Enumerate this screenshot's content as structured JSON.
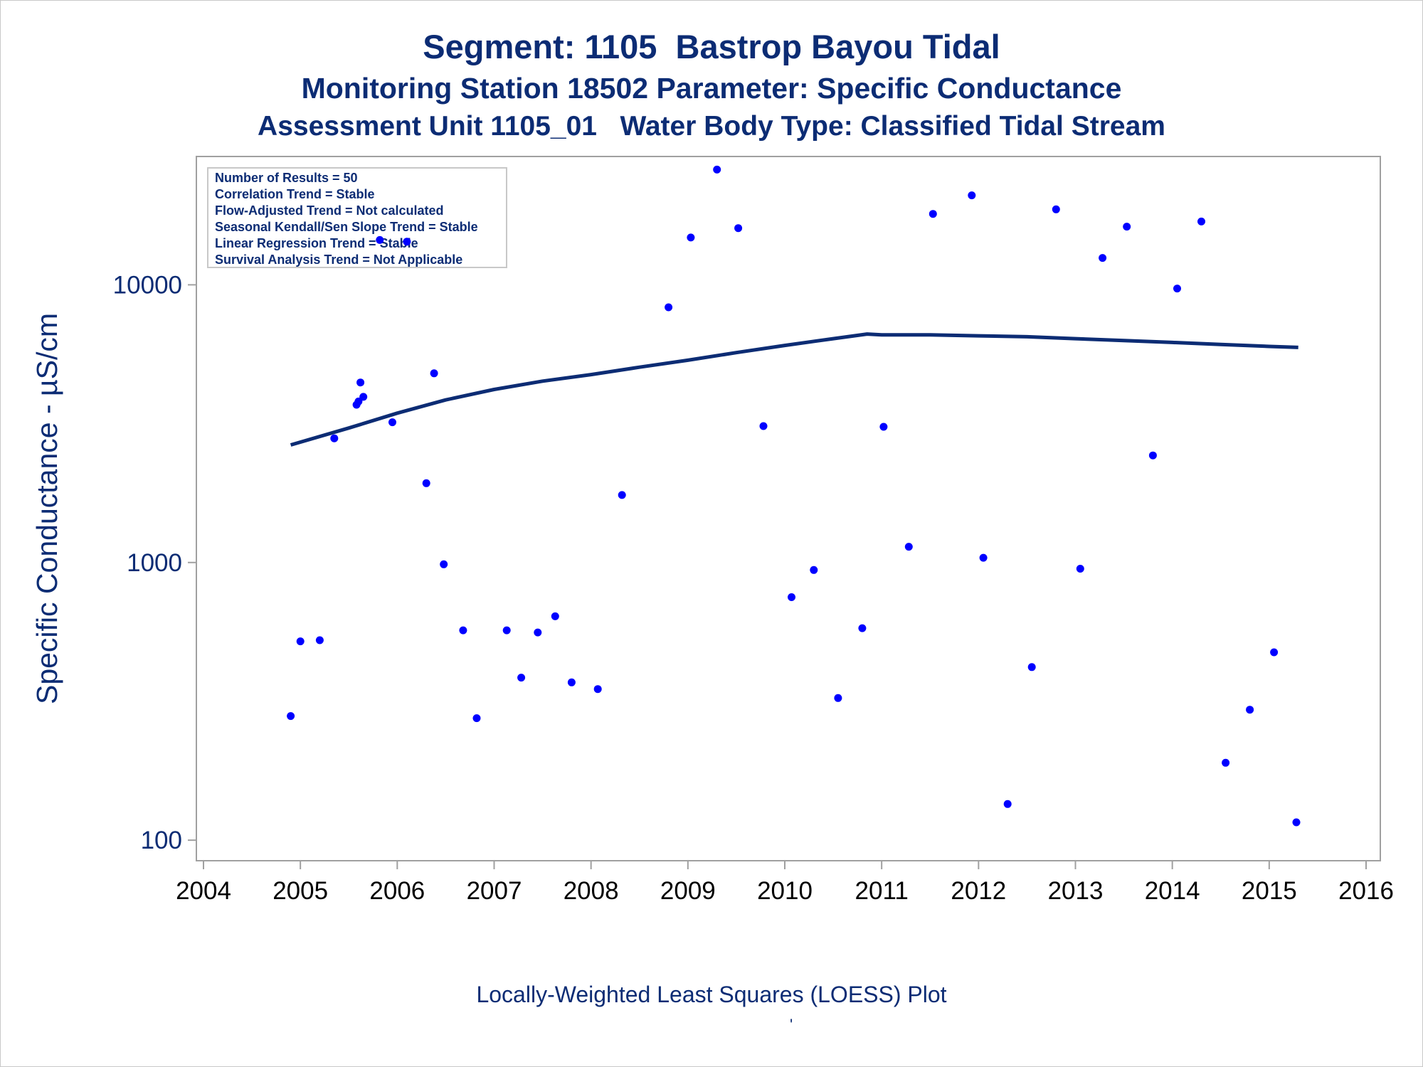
{
  "titles": {
    "line1": "Segment: 1105  Bastrop Bayou Tidal",
    "line2": "Monitoring Station 18502 Parameter: Specific Conductance",
    "line3": "Assessment Unit 1105_01   Water Body Type: Classified Tidal Stream"
  },
  "footnote": "Locally-Weighted Least Squares (LOESS) Plot",
  "footnote_mark": "'",
  "legend": {
    "lines": [
      "Number of Results = 50",
      "Correlation Trend = Stable",
      "Flow-Adjusted Trend = Not calculated",
      "Seasonal Kendall/Sen Slope Trend = Stable",
      "Linear Regression Trend = Stable",
      "Survival Analysis Trend = Not Applicable"
    ]
  },
  "colors": {
    "title": "#0c2c74",
    "points": "#0000ff",
    "loess": "#0c2c74",
    "axis": "#a0a0a0"
  },
  "chart_data": {
    "type": "scatter",
    "ylabel": "Specific Conductance -  µS/cm",
    "xlabel": "",
    "yscale": "log",
    "xlim": [
      2004,
      2016
    ],
    "ylim": [
      90,
      27000
    ],
    "xticks": [
      2004,
      2005,
      2006,
      2007,
      2008,
      2009,
      2010,
      2011,
      2012,
      2013,
      2014,
      2015,
      2016
    ],
    "yticks": [
      100,
      1000,
      10000
    ],
    "grid": false,
    "legend_position": "top-left",
    "points": [
      {
        "x": 2004.9,
        "y": 280
      },
      {
        "x": 2005.0,
        "y": 520
      },
      {
        "x": 2005.2,
        "y": 525
      },
      {
        "x": 2005.35,
        "y": 2800
      },
      {
        "x": 2005.58,
        "y": 3700
      },
      {
        "x": 2005.6,
        "y": 3800
      },
      {
        "x": 2005.62,
        "y": 4450
      },
      {
        "x": 2005.65,
        "y": 3950
      },
      {
        "x": 2005.82,
        "y": 14500
      },
      {
        "x": 2005.95,
        "y": 3200
      },
      {
        "x": 2006.1,
        "y": 14300
      },
      {
        "x": 2006.3,
        "y": 1930
      },
      {
        "x": 2006.38,
        "y": 4800
      },
      {
        "x": 2006.48,
        "y": 985
      },
      {
        "x": 2006.68,
        "y": 570
      },
      {
        "x": 2006.82,
        "y": 275
      },
      {
        "x": 2007.13,
        "y": 570
      },
      {
        "x": 2007.28,
        "y": 385
      },
      {
        "x": 2007.45,
        "y": 560
      },
      {
        "x": 2007.63,
        "y": 640
      },
      {
        "x": 2007.8,
        "y": 370
      },
      {
        "x": 2008.07,
        "y": 350
      },
      {
        "x": 2008.32,
        "y": 1750
      },
      {
        "x": 2008.8,
        "y": 8300
      },
      {
        "x": 2009.03,
        "y": 14800
      },
      {
        "x": 2009.3,
        "y": 26000
      },
      {
        "x": 2009.52,
        "y": 16000
      },
      {
        "x": 2009.78,
        "y": 3100
      },
      {
        "x": 2010.07,
        "y": 750
      },
      {
        "x": 2010.3,
        "y": 940
      },
      {
        "x": 2010.55,
        "y": 325
      },
      {
        "x": 2010.8,
        "y": 580
      },
      {
        "x": 2011.02,
        "y": 3080
      },
      {
        "x": 2011.28,
        "y": 1140
      },
      {
        "x": 2011.53,
        "y": 18000
      },
      {
        "x": 2011.93,
        "y": 21000
      },
      {
        "x": 2012.05,
        "y": 1040
      },
      {
        "x": 2012.3,
        "y": 135
      },
      {
        "x": 2012.55,
        "y": 420
      },
      {
        "x": 2012.8,
        "y": 18700
      },
      {
        "x": 2013.05,
        "y": 950
      },
      {
        "x": 2013.28,
        "y": 12500
      },
      {
        "x": 2013.53,
        "y": 16200
      },
      {
        "x": 2013.8,
        "y": 2430
      },
      {
        "x": 2014.05,
        "y": 9700
      },
      {
        "x": 2014.3,
        "y": 16900
      },
      {
        "x": 2014.55,
        "y": 190
      },
      {
        "x": 2014.8,
        "y": 295
      },
      {
        "x": 2015.05,
        "y": 475
      },
      {
        "x": 2015.28,
        "y": 116
      }
    ],
    "loess": [
      {
        "x": 2004.9,
        "y": 2650
      },
      {
        "x": 2005.5,
        "y": 3050
      },
      {
        "x": 2006.0,
        "y": 3450
      },
      {
        "x": 2006.5,
        "y": 3850
      },
      {
        "x": 2007.0,
        "y": 4200
      },
      {
        "x": 2007.5,
        "y": 4500
      },
      {
        "x": 2008.0,
        "y": 4750
      },
      {
        "x": 2008.5,
        "y": 5050
      },
      {
        "x": 2009.0,
        "y": 5350
      },
      {
        "x": 2009.5,
        "y": 5700
      },
      {
        "x": 2010.0,
        "y": 6050
      },
      {
        "x": 2010.5,
        "y": 6400
      },
      {
        "x": 2010.85,
        "y": 6650
      },
      {
        "x": 2011.0,
        "y": 6600
      },
      {
        "x": 2011.5,
        "y": 6600
      },
      {
        "x": 2012.0,
        "y": 6550
      },
      {
        "x": 2012.5,
        "y": 6500
      },
      {
        "x": 2013.0,
        "y": 6400
      },
      {
        "x": 2013.5,
        "y": 6300
      },
      {
        "x": 2014.0,
        "y": 6200
      },
      {
        "x": 2014.5,
        "y": 6100
      },
      {
        "x": 2015.0,
        "y": 6000
      },
      {
        "x": 2015.3,
        "y": 5950
      }
    ]
  }
}
